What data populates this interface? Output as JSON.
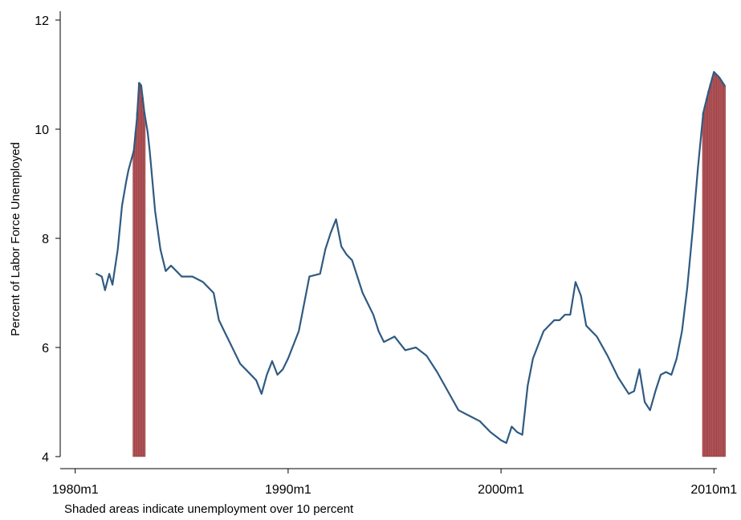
{
  "chart_data": {
    "type": "line",
    "title": "",
    "ylabel": "Percent of Labor Force Unemployed",
    "xlabel": "",
    "note": "Shaded areas indicate unemployment over 10 percent",
    "ylim": [
      4,
      12
    ],
    "xlim": [
      1980.0,
      2010.5
    ],
    "y_ticks": [
      4,
      6,
      8,
      10,
      12
    ],
    "x_ticks": [
      {
        "value": 1980.0,
        "label": "1980m1"
      },
      {
        "value": 1990.0,
        "label": "1990m1"
      },
      {
        "value": 2000.0,
        "label": "2000m1"
      },
      {
        "value": 2010.0,
        "label": "2010m1"
      }
    ],
    "grid": false,
    "legend": "none",
    "colors": {
      "line": "#2f5a82",
      "shade": "#b5565a",
      "shade_edge": "#7a2e33"
    },
    "shaded_threshold": 10,
    "shaded_periods": [
      {
        "start": 1982.75,
        "end": 1983.25
      },
      {
        "start": 2009.5,
        "end": 2010.5
      }
    ],
    "series": [
      {
        "x": [
          1981.0,
          1981.25,
          1981.4,
          1981.6,
          1981.75,
          1982.0,
          1982.2,
          1982.4,
          1982.5,
          1982.75,
          1982.9,
          1983.0,
          1983.1,
          1983.25,
          1983.4,
          1983.5,
          1983.75,
          1984.0,
          1984.25,
          1984.5,
          1984.75,
          1985.0,
          1985.5,
          1986.0,
          1986.5,
          1986.75,
          1987.0,
          1987.5,
          1987.75,
          1988.0,
          1988.5,
          1988.75,
          1989.0,
          1989.25,
          1989.5,
          1989.75,
          1990.0,
          1990.5,
          1990.75,
          1991.0,
          1991.5,
          1991.75,
          1992.0,
          1992.25,
          1992.5,
          1992.75,
          1993.0,
          1993.5,
          1994.0,
          1994.25,
          1994.5,
          1995.0,
          1995.5,
          1996.0,
          1996.5,
          1997.0,
          1997.5,
          1998.0,
          1998.5,
          1999.0,
          1999.5,
          2000.0,
          2000.25,
          2000.5,
          2000.75,
          2001.0,
          2001.25,
          2001.5,
          2002.0,
          2002.5,
          2002.75,
          2003.0,
          2003.25,
          2003.5,
          2003.75,
          2004.0,
          2004.5,
          2005.0,
          2005.5,
          2006.0,
          2006.25,
          2006.5,
          2006.75,
          2007.0,
          2007.25,
          2007.5,
          2007.75,
          2008.0,
          2008.25,
          2008.5,
          2008.75,
          2009.0,
          2009.25,
          2009.5,
          2009.75,
          2010.0,
          2010.25,
          2010.5
        ],
        "values": [
          7.35,
          7.3,
          7.05,
          7.35,
          7.15,
          7.8,
          8.6,
          9.05,
          9.25,
          9.6,
          10.2,
          10.85,
          10.8,
          10.3,
          9.95,
          9.6,
          8.5,
          7.8,
          7.4,
          7.5,
          7.4,
          7.3,
          7.3,
          7.2,
          7.0,
          6.5,
          6.3,
          5.9,
          5.7,
          5.6,
          5.4,
          5.15,
          5.5,
          5.75,
          5.5,
          5.6,
          5.8,
          6.3,
          6.8,
          7.3,
          7.35,
          7.8,
          8.1,
          8.35,
          7.85,
          7.7,
          7.6,
          7.0,
          6.6,
          6.3,
          6.1,
          6.2,
          5.95,
          6.0,
          5.85,
          5.55,
          5.2,
          4.85,
          4.75,
          4.65,
          4.45,
          4.3,
          4.25,
          4.55,
          4.45,
          4.4,
          5.3,
          5.8,
          6.3,
          6.5,
          6.5,
          6.6,
          6.6,
          7.2,
          6.95,
          6.4,
          6.2,
          5.85,
          5.45,
          5.15,
          5.2,
          5.6,
          5.0,
          4.85,
          5.2,
          5.5,
          5.55,
          5.5,
          5.8,
          6.3,
          7.1,
          8.15,
          9.3,
          10.3,
          10.7,
          11.05,
          10.95,
          10.8
        ]
      }
    ]
  }
}
